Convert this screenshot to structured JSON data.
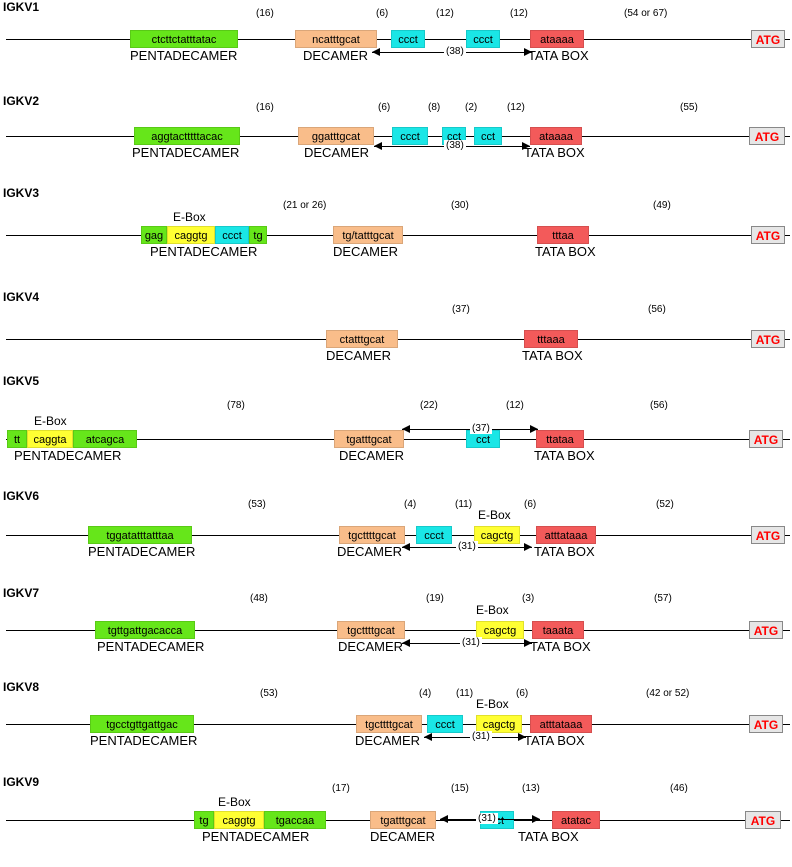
{
  "labels": {
    "pentadecamer": "PENTADECAMER",
    "decamer": "DECAMER",
    "tata_box": "TATA BOX",
    "e_box": "E-Box",
    "atg": "ATG"
  },
  "genes": [
    {
      "name": "IGKV1",
      "penta": [
        {
          "seq": "ctcttctatttatac",
          "color": "green"
        }
      ],
      "decamer": "ncatttgcat",
      "spacers": [
        "(16)",
        "(6)",
        "(12)",
        "(12)",
        "(54 or 67)"
      ],
      "cct": [
        "ccct",
        "ccct"
      ],
      "tata": "ataaaa",
      "span": "(38)"
    },
    {
      "name": "IGKV2",
      "penta": [
        {
          "seq": "aggtactttttacac",
          "color": "green"
        }
      ],
      "decamer": "ggatttgcat",
      "spacers": [
        "(16)",
        "(6)",
        "(8)",
        "(2)",
        "(12)",
        "(55)"
      ],
      "cct": [
        "ccct",
        "cct",
        "cct"
      ],
      "tata": "ataaaa",
      "span": "(38)"
    },
    {
      "name": "IGKV3",
      "penta": [
        {
          "seq": "gag",
          "color": "green"
        },
        {
          "seq": "caggtg",
          "color": "yellow"
        },
        {
          "seq": "ccct",
          "color": "cyan"
        },
        {
          "seq": "tg",
          "color": "green"
        }
      ],
      "decamer": "tg/tatttgcat",
      "spacers": [
        "(21 or 26)",
        "(30)",
        "(49)"
      ],
      "cct": [],
      "tata": "tttaa",
      "span": ""
    },
    {
      "name": "IGKV4",
      "penta": [],
      "decamer": "ctatttgcat",
      "spacers": [
        "(37)",
        "(56)"
      ],
      "cct": [],
      "tata": "tttaaa",
      "span": ""
    },
    {
      "name": "IGKV5",
      "penta": [
        {
          "seq": "tt",
          "color": "green"
        },
        {
          "seq": "caggta",
          "color": "yellow"
        },
        {
          "seq": "atcagca",
          "color": "green"
        }
      ],
      "decamer": "tgatttgcat",
      "spacers": [
        "(78)",
        "(22)",
        "(12)",
        "(56)"
      ],
      "cct": [
        "cct"
      ],
      "tata": "ttataa",
      "span": "(37)"
    },
    {
      "name": "IGKV6",
      "penta": [
        {
          "seq": "tggatatttatttaa",
          "color": "green"
        }
      ],
      "decamer": "tgcttttgcat",
      "spacers": [
        "(53)",
        "(4)",
        "(11)",
        "(6)",
        "(52)"
      ],
      "cct": [
        "ccct"
      ],
      "ebox": "cagctg",
      "tata": "atttataaa",
      "span": "(31)"
    },
    {
      "name": "IGKV7",
      "penta": [
        {
          "seq": "tgttgattgacacca",
          "color": "green"
        }
      ],
      "decamer": "tgcttttgcat",
      "spacers": [
        "(48)",
        "(19)",
        "(3)",
        "(57)"
      ],
      "cct": [],
      "ebox": "cagctg",
      "tata": "taaata",
      "span": "(31)"
    },
    {
      "name": "IGKV8",
      "penta": [
        {
          "seq": "tgcctgttgattgac",
          "color": "green"
        }
      ],
      "decamer": "tgcttttgcat",
      "spacers": [
        "(53)",
        "(4)",
        "(11)",
        "(6)",
        "(42 or 52)"
      ],
      "cct": [
        "ccct"
      ],
      "ebox": "cagctg",
      "tata": "atttataaa",
      "span": "(31)"
    },
    {
      "name": "IGKV9",
      "penta": [
        {
          "seq": "tg",
          "color": "green"
        },
        {
          "seq": "caggtg",
          "color": "yellow"
        },
        {
          "seq": "tgaccaa",
          "color": "green"
        }
      ],
      "decamer": "tgatttgcat",
      "spacers": [
        "(17)",
        "(15)",
        "(13)",
        "(46)"
      ],
      "cct": [
        "cct"
      ],
      "tata": "atatac",
      "span": "(31)"
    }
  ]
}
